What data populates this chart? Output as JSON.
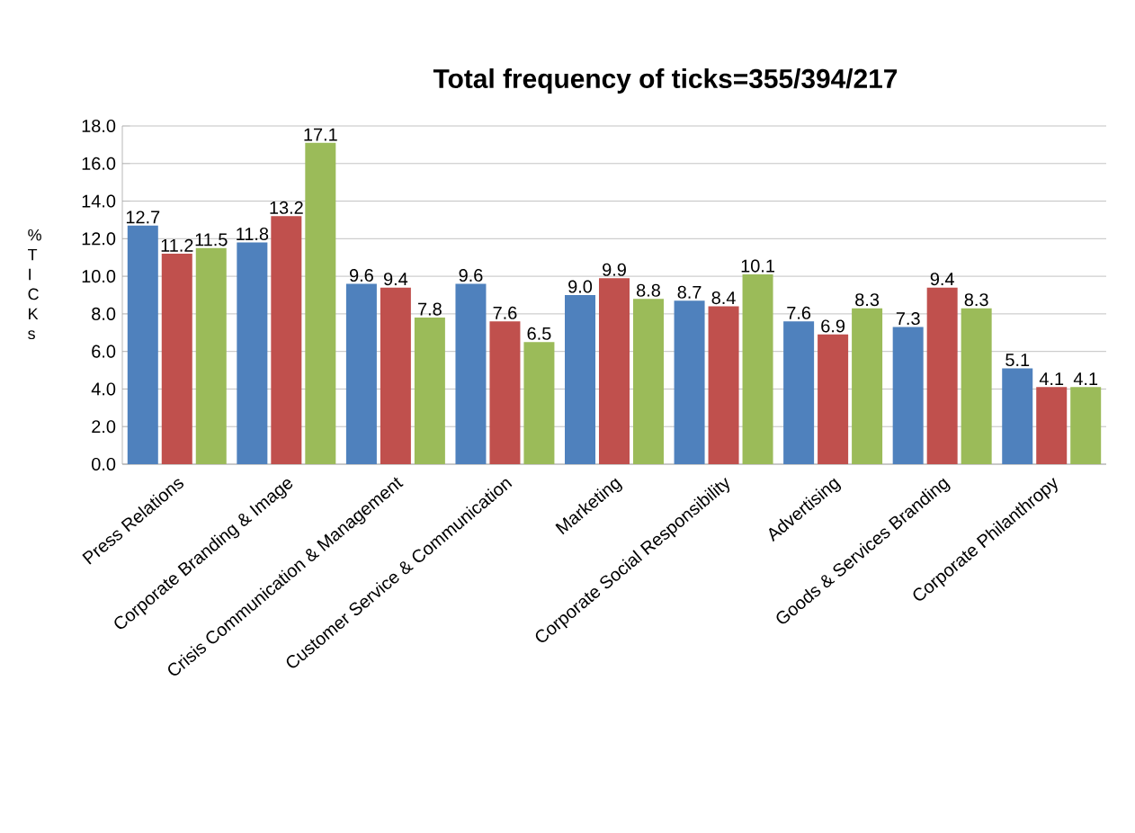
{
  "chart_data": {
    "type": "bar",
    "title": "Total frequency of ticks=355/394/217",
    "ylabel": "% T I C K s",
    "categories": [
      "Press Relations",
      "Corporate Branding & Image",
      "Crisis Communication & Management",
      "Customer Service & Communication",
      "Marketing",
      "Corporate Social Responsibility",
      "Advertising",
      "Goods & Services Branding",
      "Corporate Philanthropy"
    ],
    "series": [
      {
        "color": "#4f81bd",
        "values": [
          12.7,
          11.8,
          9.6,
          9.6,
          9.0,
          8.7,
          7.6,
          7.3,
          5.1
        ],
        "value_labels": [
          "12.7",
          "11.8",
          "9.6",
          "9.6",
          "9.0",
          "8.7",
          "7.6",
          "7.3",
          "5.1"
        ]
      },
      {
        "color": "#c0504d",
        "values": [
          11.2,
          13.2,
          9.4,
          7.6,
          9.9,
          8.4,
          6.9,
          9.4,
          4.1
        ],
        "value_labels": [
          "11.2",
          "13.2",
          "9.4",
          "7.6",
          "9.9",
          "8.4",
          "6.9",
          "9.4",
          "4.1"
        ]
      },
      {
        "color": "#9bbb59",
        "values": [
          11.5,
          17.1,
          7.8,
          6.5,
          8.8,
          10.1,
          8.3,
          8.3,
          4.1
        ],
        "value_labels": [
          "11.5",
          "17.1",
          "7.8",
          "6.5",
          "8.8",
          "10.1",
          "8.3",
          "8.3",
          "4.1"
        ]
      }
    ],
    "ylim": [
      0,
      18
    ],
    "yticks": [
      {
        "value": 0,
        "label": "0.0"
      },
      {
        "value": 2,
        "label": "2.0"
      },
      {
        "value": 4,
        "label": "4.0"
      },
      {
        "value": 6,
        "label": "6.0"
      },
      {
        "value": 8,
        "label": "8.0"
      },
      {
        "value": 10,
        "label": "10.0"
      },
      {
        "value": 12,
        "label": "12.0"
      },
      {
        "value": 14,
        "label": "14.0"
      },
      {
        "value": 16,
        "label": "16.0"
      },
      {
        "value": 18,
        "label": "18.0"
      }
    ],
    "grid": "y"
  }
}
